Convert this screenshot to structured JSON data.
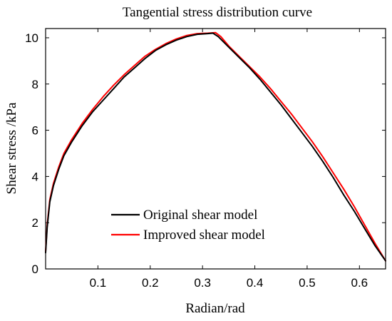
{
  "chart_data": {
    "type": "line",
    "title": "Tangential stress distribution curve",
    "xlabel": "Radian/rad",
    "ylabel": "Shear stress /kPa",
    "xlim": [
      0,
      0.65
    ],
    "ylim": [
      0,
      10.4
    ],
    "xticks": [
      0.1,
      0.2,
      0.3,
      0.4,
      0.5,
      0.6
    ],
    "yticks": [
      0,
      2,
      4,
      6,
      8,
      10
    ],
    "grid": false,
    "legend_position": "bottom-left",
    "series": [
      {
        "name": "Original shear model",
        "color": "#000000",
        "x": [
          0.0,
          0.003,
          0.008,
          0.015,
          0.025,
          0.035,
          0.05,
          0.07,
          0.09,
          0.11,
          0.13,
          0.15,
          0.17,
          0.19,
          0.21,
          0.23,
          0.25,
          0.27,
          0.29,
          0.31,
          0.32,
          0.33,
          0.35,
          0.37,
          0.39,
          0.41,
          0.43,
          0.45,
          0.47,
          0.49,
          0.51,
          0.53,
          0.55,
          0.57,
          0.59,
          0.61,
          0.63,
          0.65
        ],
        "y": [
          0.7,
          1.8,
          2.9,
          3.6,
          4.3,
          4.9,
          5.5,
          6.2,
          6.8,
          7.3,
          7.8,
          8.3,
          8.7,
          9.1,
          9.45,
          9.7,
          9.9,
          10.05,
          10.15,
          10.18,
          10.2,
          10.05,
          9.6,
          9.15,
          8.7,
          8.2,
          7.65,
          7.1,
          6.5,
          5.9,
          5.3,
          4.65,
          3.95,
          3.2,
          2.5,
          1.75,
          1.0,
          0.35
        ]
      },
      {
        "name": "Improved shear model",
        "color": "#ff0000",
        "x": [
          0.0,
          0.003,
          0.008,
          0.015,
          0.025,
          0.035,
          0.05,
          0.07,
          0.09,
          0.11,
          0.13,
          0.15,
          0.17,
          0.19,
          0.21,
          0.23,
          0.25,
          0.27,
          0.29,
          0.31,
          0.325,
          0.335,
          0.35,
          0.37,
          0.39,
          0.41,
          0.43,
          0.45,
          0.47,
          0.49,
          0.51,
          0.53,
          0.55,
          0.57,
          0.59,
          0.61,
          0.63,
          0.65
        ],
        "y": [
          0.75,
          1.9,
          3.0,
          3.7,
          4.4,
          5.0,
          5.6,
          6.3,
          6.9,
          7.45,
          7.95,
          8.4,
          8.8,
          9.2,
          9.5,
          9.75,
          9.95,
          10.1,
          10.18,
          10.2,
          10.22,
          10.05,
          9.65,
          9.2,
          8.75,
          8.3,
          7.8,
          7.25,
          6.7,
          6.1,
          5.5,
          4.85,
          4.15,
          3.45,
          2.7,
          1.9,
          1.1,
          0.35
        ]
      }
    ]
  }
}
